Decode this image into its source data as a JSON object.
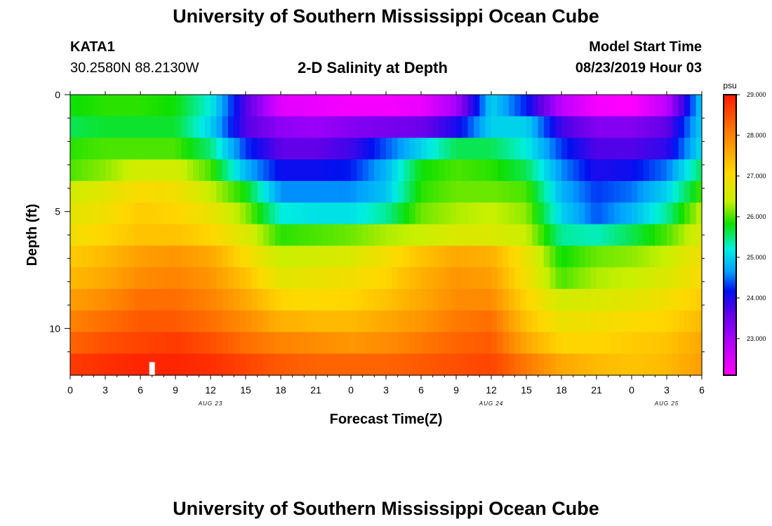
{
  "header": {
    "title": "University of Southern Mississippi Ocean Cube",
    "station_id": "KATA1",
    "station_coords": "30.2580N 88.2130W",
    "plot_title": "2-D Salinity at Depth",
    "model_start_label": "Model Start Time",
    "model_start_value": "08/23/2019 Hour 03"
  },
  "footer": {
    "title": "University of Southern Mississippi Ocean Cube"
  },
  "colors": {
    "marker": "#ffffff",
    "axis": "#000000"
  },
  "chart_data": {
    "type": "heatmap",
    "title": "2-D Salinity at Depth",
    "xlabel": "Forecast Time(Z)",
    "ylabel": "Depth (ft)",
    "x_hours": [
      0,
      54
    ],
    "x_tick_labels": [
      "0",
      "3",
      "6",
      "9",
      "12",
      "15",
      "18",
      "21",
      "0",
      "3",
      "6",
      "9",
      "12",
      "15",
      "18",
      "21",
      "0",
      "3",
      "6"
    ],
    "x_tick_step_hours": 3,
    "date_labels": [
      {
        "text": "AUG 23",
        "hour": 12
      },
      {
        "text": "AUG 24",
        "hour": 36
      },
      {
        "text": "AUG 25",
        "hour": 51
      }
    ],
    "ylim": [
      0,
      12
    ],
    "y_inverted": true,
    "y_tick_labels": [
      {
        "text": "0",
        "value": 0
      },
      {
        "text": "5",
        "value": 5
      },
      {
        "text": "10",
        "value": 10
      }
    ],
    "colorbar": {
      "unit": "psu",
      "min": 22.1,
      "max": 29.0,
      "tick_labels": [
        "29.000",
        "28.000",
        "27.000",
        "26.000",
        "25.000",
        "24.000",
        "23.000"
      ],
      "tick_values": [
        29,
        28,
        27,
        26,
        25,
        24,
        23
      ]
    },
    "marker": {
      "hour": 7,
      "depth": 11.8
    },
    "depth_levels": [
      0,
      1,
      2,
      3,
      4,
      5,
      6,
      7,
      8,
      9,
      10,
      11,
      12
    ],
    "series": [
      {
        "name": "0 ft",
        "values": [
          25.8,
          25.9,
          25.9,
          25.8,
          25.2,
          23.7,
          22.4,
          22.3,
          22.2,
          22.2,
          22.3,
          23.0,
          25.0,
          24.2,
          22.8,
          22.2,
          22.1,
          22.8,
          25.0
        ]
      },
      {
        "name": "1 ft",
        "values": [
          25.6,
          25.7,
          25.7,
          25.7,
          25.0,
          23.7,
          23.2,
          23.1,
          23.3,
          23.4,
          23.5,
          24.0,
          25.0,
          25.0,
          23.8,
          23.3,
          23.3,
          23.6,
          25.0
        ]
      },
      {
        "name": "2 ft",
        "values": [
          25.9,
          26.0,
          26.0,
          26.0,
          25.5,
          24.3,
          23.6,
          23.6,
          23.8,
          24.4,
          25.0,
          25.6,
          25.6,
          25.2,
          24.3,
          23.7,
          23.7,
          23.9,
          25.1
        ]
      },
      {
        "name": "3 ft",
        "values": [
          26.0,
          26.2,
          26.5,
          26.5,
          26.0,
          24.8,
          24.1,
          24.1,
          24.2,
          24.8,
          25.8,
          26.0,
          25.9,
          25.6,
          24.6,
          24.0,
          24.1,
          24.5,
          25.6
        ]
      },
      {
        "name": "4 ft",
        "values": [
          26.5,
          26.7,
          27.0,
          26.9,
          26.4,
          25.8,
          24.6,
          24.6,
          24.6,
          24.9,
          25.9,
          26.1,
          26.1,
          26.0,
          24.8,
          24.3,
          24.5,
          25.0,
          26.0
        ]
      },
      {
        "name": "5 ft",
        "values": [
          26.7,
          26.9,
          27.2,
          27.1,
          26.8,
          26.2,
          25.2,
          25.1,
          25.1,
          25.4,
          26.1,
          26.3,
          26.4,
          26.2,
          25.0,
          24.4,
          24.8,
          25.4,
          26.4
        ]
      },
      {
        "name": "6 ft",
        "values": [
          26.9,
          27.1,
          27.3,
          27.3,
          27.1,
          26.6,
          25.9,
          26.0,
          26.1,
          26.3,
          26.4,
          26.6,
          26.6,
          26.4,
          25.4,
          25.3,
          25.6,
          26.0,
          26.6
        ]
      },
      {
        "name": "7 ft",
        "values": [
          27.2,
          27.4,
          27.7,
          27.8,
          27.6,
          27.0,
          26.4,
          26.5,
          26.6,
          26.9,
          27.3,
          27.6,
          27.5,
          26.8,
          25.8,
          26.1,
          26.2,
          26.4,
          26.9
        ]
      },
      {
        "name": "8 ft",
        "values": [
          27.4,
          27.6,
          27.9,
          28.0,
          27.8,
          27.3,
          26.7,
          26.8,
          26.9,
          27.1,
          27.5,
          27.8,
          27.7,
          26.9,
          26.0,
          26.3,
          26.4,
          26.6,
          27.0
        ]
      },
      {
        "name": "9 ft",
        "values": [
          27.7,
          27.9,
          28.2,
          28.2,
          28.0,
          27.6,
          27.1,
          27.0,
          27.1,
          27.3,
          27.6,
          27.9,
          27.9,
          27.1,
          26.5,
          26.6,
          26.7,
          26.9,
          27.2
        ]
      },
      {
        "name": "10 ft",
        "values": [
          28.0,
          28.2,
          28.4,
          28.4,
          28.2,
          27.9,
          27.5,
          27.4,
          27.4,
          27.6,
          27.8,
          28.1,
          28.2,
          27.3,
          26.8,
          26.9,
          27.0,
          27.1,
          27.4
        ]
      },
      {
        "name": "11 ft",
        "values": [
          28.3,
          28.5,
          28.6,
          28.7,
          28.5,
          28.2,
          28.0,
          27.9,
          27.8,
          27.9,
          28.1,
          28.3,
          28.4,
          27.6,
          27.1,
          27.1,
          27.2,
          27.3,
          27.6
        ]
      },
      {
        "name": "12 ft",
        "values": [
          28.7,
          28.8,
          28.9,
          28.9,
          28.8,
          28.6,
          28.4,
          28.3,
          28.3,
          28.3,
          28.4,
          28.5,
          28.6,
          28.1,
          27.6,
          27.4,
          27.3,
          27.4,
          27.7
        ]
      }
    ]
  }
}
